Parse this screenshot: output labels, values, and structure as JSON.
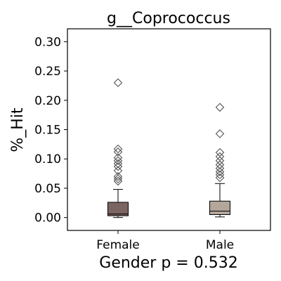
{
  "chart_data": {
    "type": "box",
    "title": "g__Coprococcus",
    "xlabel": "Gender p = 0.532",
    "ylabel": "%_Hit",
    "ylim": [
      -0.022,
      0.322
    ],
    "yticks": [
      "0.00",
      "0.05",
      "0.10",
      "0.15",
      "0.20",
      "0.25",
      "0.30"
    ],
    "grid": false,
    "legend": "none",
    "categories": [
      "Female",
      "Male"
    ],
    "boxes": [
      {
        "name": "Female",
        "color": "#7b6562",
        "whisker_low": 0.0,
        "q1": 0.003,
        "median": 0.006,
        "q3": 0.026,
        "whisker_high": 0.048,
        "outliers": [
          0.23,
          0.117,
          0.112,
          0.102,
          0.097,
          0.092,
          0.087,
          0.08,
          0.07,
          0.066,
          0.062
        ]
      },
      {
        "name": "Male",
        "color": "#b3a79c",
        "whisker_low": 0.001,
        "q1": 0.005,
        "median": 0.011,
        "q3": 0.028,
        "whisker_high": 0.058,
        "outliers": [
          0.188,
          0.143,
          0.111,
          0.104,
          0.097,
          0.09,
          0.084,
          0.078,
          0.073,
          0.068
        ]
      }
    ]
  }
}
